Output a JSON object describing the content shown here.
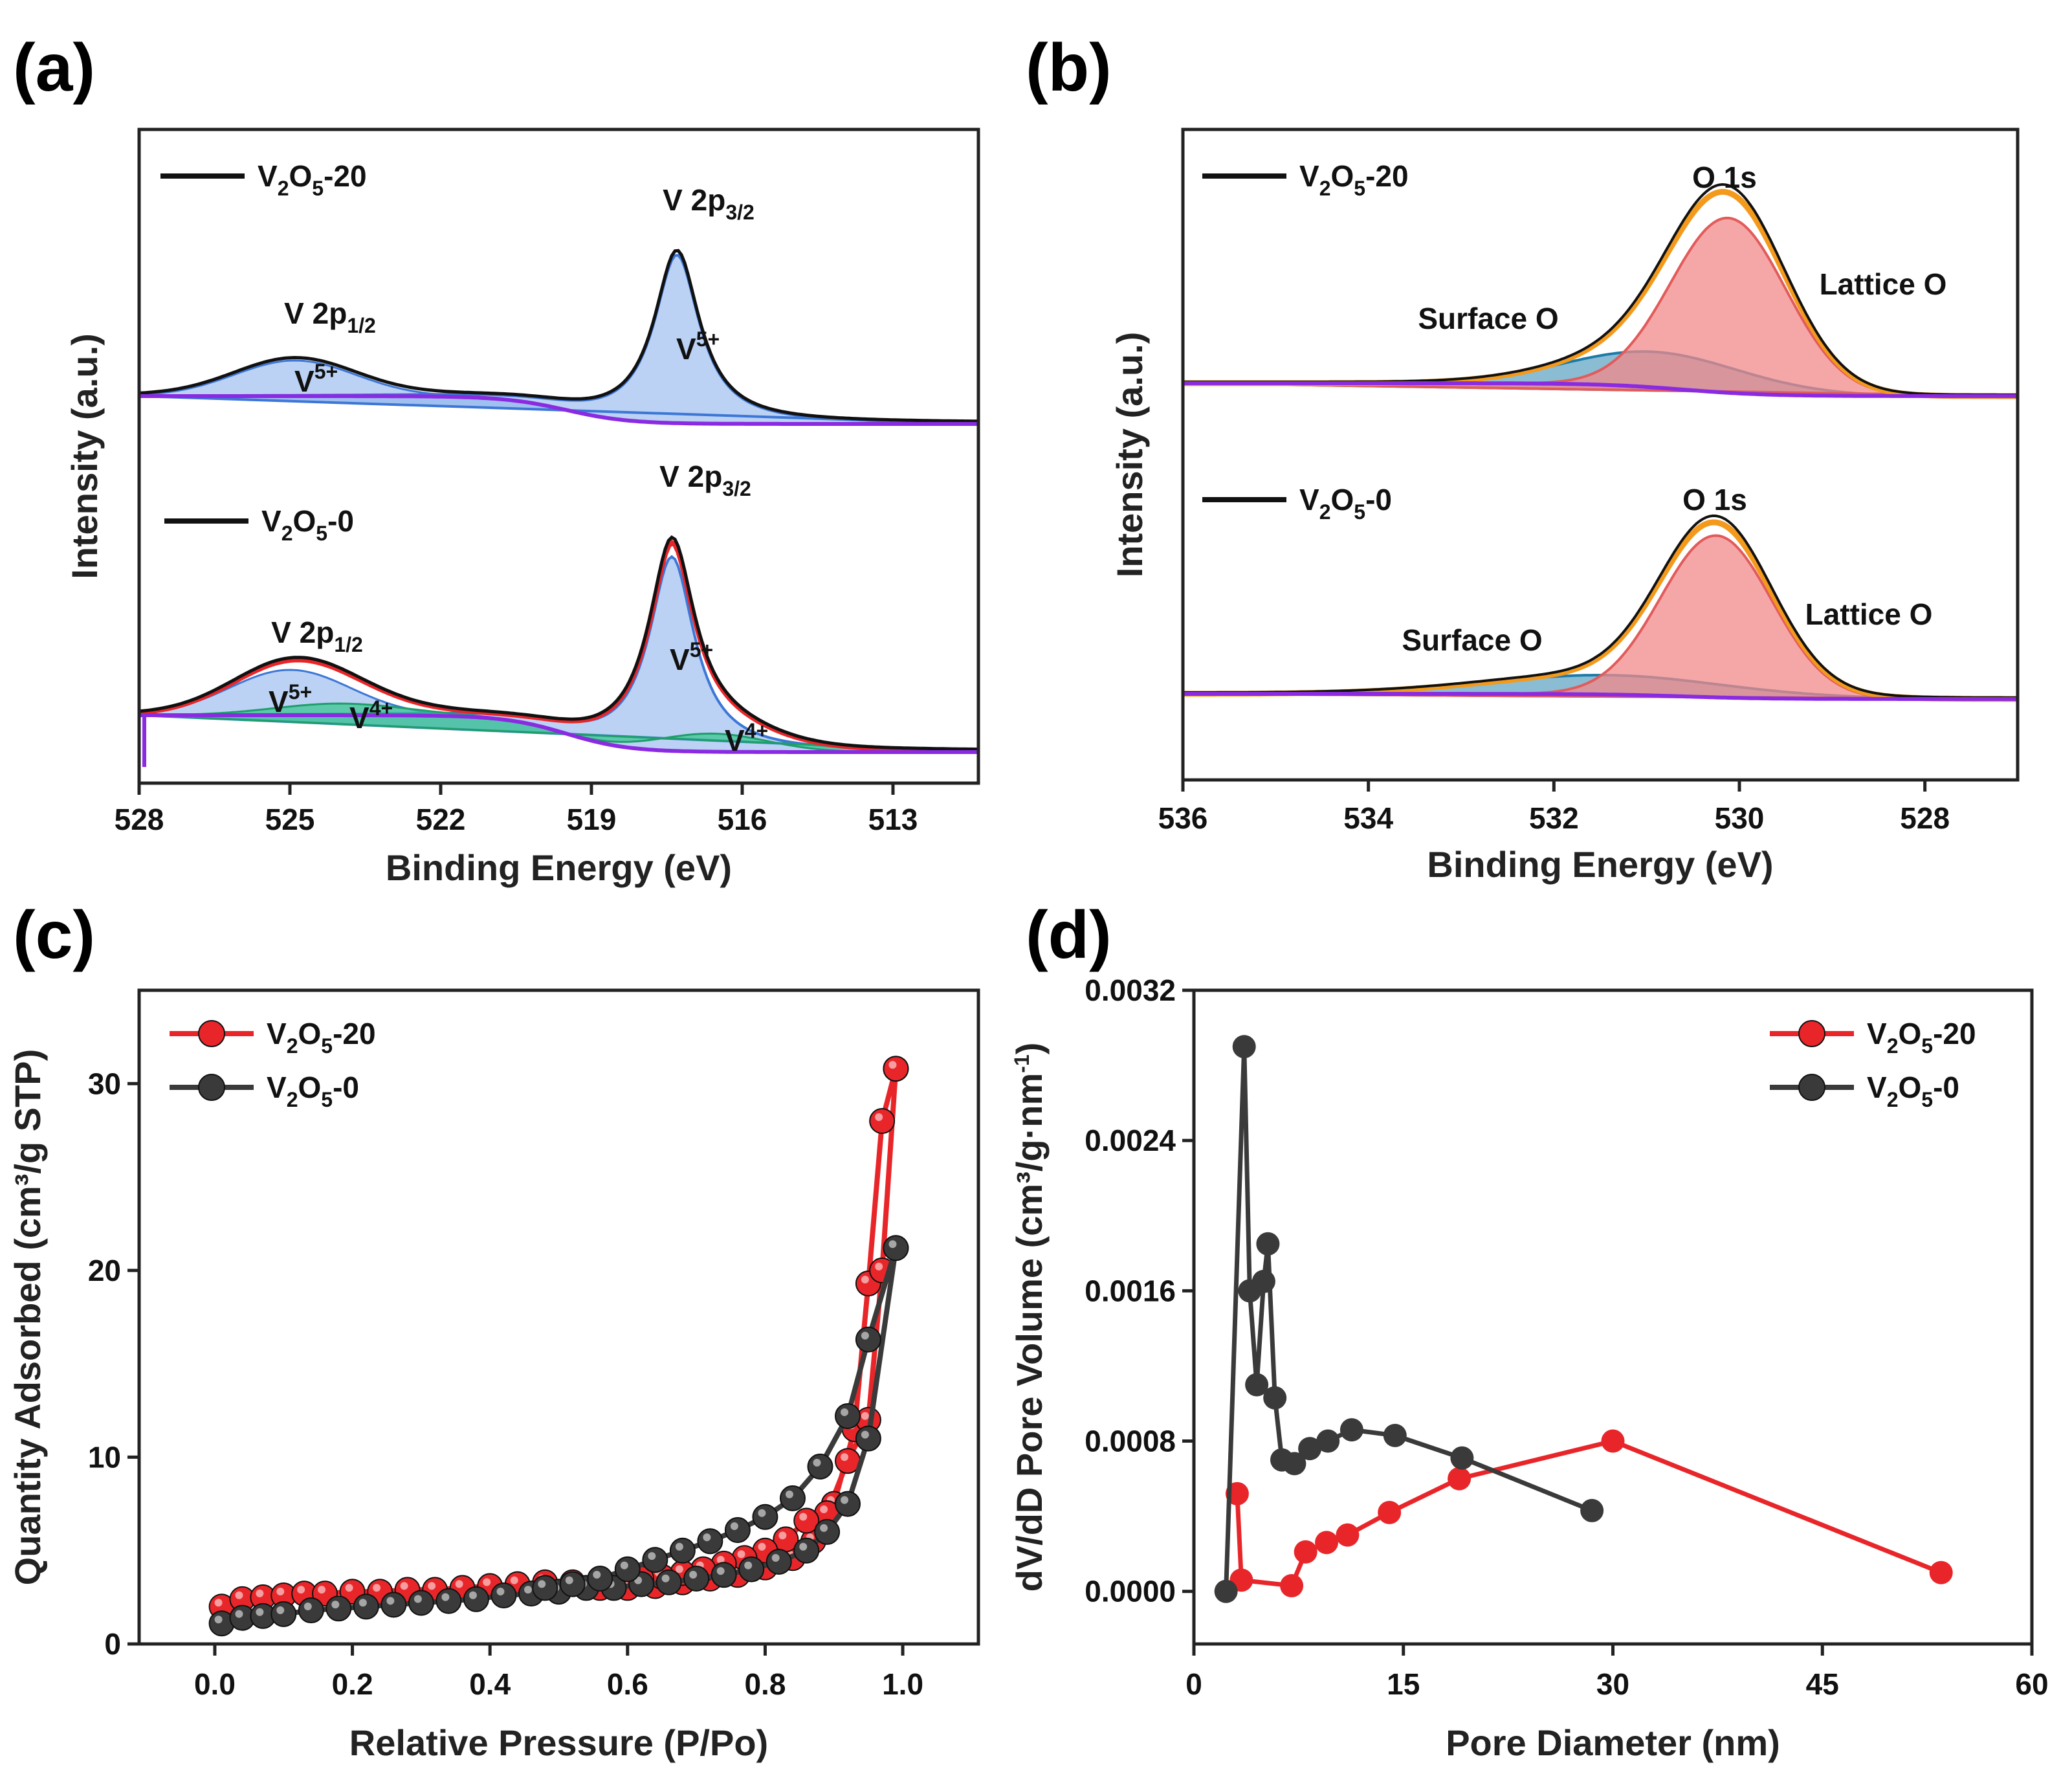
{
  "panels": [
    {
      "id": "a",
      "label": "(a)"
    },
    {
      "id": "b",
      "label": "(b)"
    },
    {
      "id": "c",
      "label": "(c)"
    },
    {
      "id": "d",
      "label": "(d)"
    }
  ],
  "colors": {
    "black": "#111111",
    "red": "#e8262a",
    "gray": "#3a3a3a",
    "purple": "#8a2be2",
    "blue_fill": "#8db4ec",
    "blue_line": "#3d77d6",
    "green_fill": "#35c48c",
    "red_fill": "#f28a8a",
    "orange": "#f39a1d",
    "teal_fill": "#3c8fb8",
    "surface_text": "#1a8fc4",
    "lattice_text": "#ef6461"
  },
  "chart_data": [
    {
      "id": "a",
      "type": "line",
      "title": "",
      "xlabel": "Binding Energy (eV)",
      "ylabel": "Intensity (a.u.)",
      "xlim": [
        528,
        511.3
      ],
      "xticks": [
        528,
        525,
        522,
        519,
        516,
        513
      ],
      "xtick_labels": [
        "528",
        "525",
        "522",
        "519",
        "516",
        "513"
      ],
      "series": [
        {
          "name": "V2O5-20",
          "legend": "V2O5-20",
          "legend_parts": [
            "V",
            "2",
            "O",
            "5",
            "-20"
          ],
          "peaks": [
            {
              "center": 524.9,
              "label": "V 2p1/2",
              "label_parts": [
                "V 2p",
                "1/2"
              ],
              "state": "V5+"
            },
            {
              "center": 517.3,
              "label": "V 2p3/2",
              "label_parts": [
                "V 2p",
                "3/2"
              ],
              "state": "V5+"
            }
          ]
        },
        {
          "name": "V2O5-0",
          "legend": "V2O5-0",
          "legend_parts": [
            "V",
            "2",
            "O",
            "5",
            "-0"
          ],
          "peaks": [
            {
              "center": 525.0,
              "label": "V 2p1/2",
              "label_parts": [
                "V 2p",
                "1/2"
              ],
              "states": [
                "V5+",
                "V4+"
              ]
            },
            {
              "center": 517.4,
              "label": "V 2p3/2",
              "label_parts": [
                "V 2p",
                "3/2"
              ],
              "states": [
                "V5+",
                "V4+"
              ]
            }
          ]
        }
      ],
      "annotations": [
        {
          "text": "V5+",
          "parts": [
            "V",
            "5+"
          ]
        },
        {
          "text": "V5+",
          "parts": [
            "V",
            "5+"
          ]
        },
        {
          "text": "V5+",
          "parts": [
            "V",
            "5+"
          ]
        },
        {
          "text": "V4+",
          "parts": [
            "V",
            "4+"
          ]
        },
        {
          "text": "V5+",
          "parts": [
            "V",
            "5+"
          ]
        },
        {
          "text": "V4+",
          "parts": [
            "V",
            "4+"
          ]
        }
      ]
    },
    {
      "id": "b",
      "type": "line",
      "title": "",
      "xlabel": "Binding Energy (eV)",
      "ylabel": "Intensity (a.u.)",
      "xlim": [
        536,
        527
      ],
      "xticks": [
        536,
        534,
        532,
        530,
        528
      ],
      "xtick_labels": [
        "536",
        "534",
        "532",
        "530",
        "528"
      ],
      "series": [
        {
          "name": "V2O5-20",
          "legend": "V2O5-20",
          "legend_parts": [
            "V",
            "2",
            "O",
            "5",
            "-20"
          ],
          "peak_label": "O 1s",
          "components": [
            {
              "label": "Surface O",
              "center": 530.9
            },
            {
              "label": "Lattice O",
              "center": 530.1
            }
          ]
        },
        {
          "name": "V2O5-0",
          "legend": "V2O5-0",
          "legend_parts": [
            "V",
            "2",
            "O",
            "5",
            "-0"
          ],
          "peak_label": "O 1s",
          "components": [
            {
              "label": "Surface O",
              "center": 531.3
            },
            {
              "label": "Lattice O",
              "center": 530.2
            }
          ]
        }
      ]
    },
    {
      "id": "c",
      "type": "scatter",
      "title": "",
      "xlabel": "Relative Pressure (P/Po)",
      "ylabel": "Quantity Adsorbed (cm³/g STP)",
      "xlim": [
        -0.11,
        1.11
      ],
      "ylim": [
        0,
        35
      ],
      "xticks": [
        0.0,
        0.2,
        0.4,
        0.6,
        0.8,
        1.0
      ],
      "xtick_labels": [
        "0.0",
        "0.2",
        "0.4",
        "0.6",
        "0.8",
        "1.0"
      ],
      "yticks": [
        0,
        10,
        20,
        30
      ],
      "ytick_labels": [
        "0",
        "10",
        "20",
        "30"
      ],
      "legend_position": "top-left",
      "series": [
        {
          "name": "V2O5-20",
          "legend_parts": [
            "V",
            "2",
            "O",
            "5",
            "-20"
          ],
          "color": "#e8262a",
          "adsorption_x": [
            0.01,
            0.04,
            0.07,
            0.1,
            0.13,
            0.16,
            0.2,
            0.24,
            0.28,
            0.32,
            0.36,
            0.4,
            0.44,
            0.48,
            0.52,
            0.56,
            0.6,
            0.64,
            0.68,
            0.72,
            0.76,
            0.8,
            0.84,
            0.87,
            0.9,
            0.93,
            0.95,
            0.97,
            0.99
          ],
          "adsorption_y": [
            2.0,
            2.4,
            2.5,
            2.6,
            2.7,
            2.7,
            2.8,
            2.8,
            2.9,
            2.9,
            3.0,
            3.1,
            3.2,
            3.3,
            3.3,
            3.0,
            3.0,
            3.1,
            3.3,
            3.5,
            3.7,
            4.1,
            4.6,
            5.5,
            7.5,
            11.5,
            19.3,
            28.0,
            30.8
          ],
          "desorption_x": [
            0.99,
            0.97,
            0.95,
            0.92,
            0.89,
            0.86,
            0.83,
            0.8,
            0.77,
            0.74,
            0.71,
            0.68,
            0.65,
            0.62
          ],
          "desorption_y": [
            30.8,
            20.0,
            12.0,
            9.8,
            7.0,
            6.6,
            5.6,
            5.0,
            4.6,
            4.3,
            4.0,
            3.8,
            3.6,
            3.5
          ]
        },
        {
          "name": "V2O5-0",
          "legend_parts": [
            "V",
            "2",
            "O",
            "5",
            "-0"
          ],
          "color": "#3a3a3a",
          "adsorption_x": [
            0.01,
            0.04,
            0.07,
            0.1,
            0.14,
            0.18,
            0.22,
            0.26,
            0.3,
            0.34,
            0.38,
            0.42,
            0.46,
            0.5,
            0.54,
            0.58,
            0.62,
            0.66,
            0.7,
            0.74,
            0.78,
            0.82,
            0.86,
            0.89,
            0.92,
            0.95,
            0.99
          ],
          "adsorption_y": [
            1.1,
            1.4,
            1.5,
            1.6,
            1.8,
            1.9,
            2.0,
            2.1,
            2.2,
            2.3,
            2.4,
            2.6,
            2.7,
            2.8,
            3.0,
            3.0,
            3.2,
            3.3,
            3.5,
            3.7,
            4.0,
            4.4,
            5.0,
            6.0,
            7.5,
            11.0,
            21.2
          ],
          "desorption_x": [
            0.99,
            0.95,
            0.92,
            0.88,
            0.84,
            0.8,
            0.76,
            0.72,
            0.68,
            0.64,
            0.6,
            0.56,
            0.52,
            0.48
          ],
          "desorption_y": [
            21.2,
            16.3,
            12.2,
            9.5,
            7.8,
            6.8,
            6.1,
            5.5,
            5.0,
            4.5,
            4.0,
            3.5,
            3.2,
            3.0
          ]
        }
      ]
    },
    {
      "id": "d",
      "type": "line",
      "title": "",
      "xlabel": "Pore Diameter (nm)",
      "ylabel": "dV/dD Pore Volume (cm³/g·nm⁻¹)",
      "ylabel_parts": [
        "dV/dD Pore Volume (cm³/g·nm",
        "-1",
        ")"
      ],
      "xlim": [
        0,
        60
      ],
      "ylim": [
        -0.00028,
        0.0032
      ],
      "xticks": [
        0,
        15,
        30,
        45,
        60
      ],
      "xtick_labels": [
        "0",
        "15",
        "30",
        "45",
        "60"
      ],
      "yticks": [
        0.0,
        0.0008,
        0.0016,
        0.0024,
        0.0032
      ],
      "ytick_labels": [
        "0.0000",
        "0.0008",
        "0.0016",
        "0.0024",
        "0.0032"
      ],
      "legend_position": "top-right",
      "series": [
        {
          "name": "V2O5-20",
          "legend_parts": [
            "V",
            "2",
            "O",
            "5",
            "-20"
          ],
          "color": "#e8262a",
          "x": [
            3.1,
            3.4,
            7.0,
            8.0,
            9.5,
            11.0,
            14.0,
            19.0,
            30.0,
            53.5
          ],
          "y": [
            0.00052,
            6e-05,
            3e-05,
            0.00021,
            0.00026,
            0.0003,
            0.00042,
            0.0006,
            0.0008,
            0.0001
          ]
        },
        {
          "name": "V2O5-0",
          "legend_parts": [
            "V",
            "2",
            "O",
            "5",
            "-0"
          ],
          "color": "#3a3a3a",
          "x": [
            2.3,
            3.6,
            4.0,
            4.5,
            5.0,
            5.3,
            5.8,
            6.3,
            7.2,
            8.3,
            9.6,
            11.3,
            14.4,
            19.2,
            28.5
          ],
          "y": [
            0.0,
            0.0029,
            0.0016,
            0.0011,
            0.00165,
            0.00185,
            0.00103,
            0.0007,
            0.00068,
            0.00076,
            0.0008,
            0.00086,
            0.00083,
            0.00071,
            0.00043
          ]
        }
      ]
    }
  ]
}
